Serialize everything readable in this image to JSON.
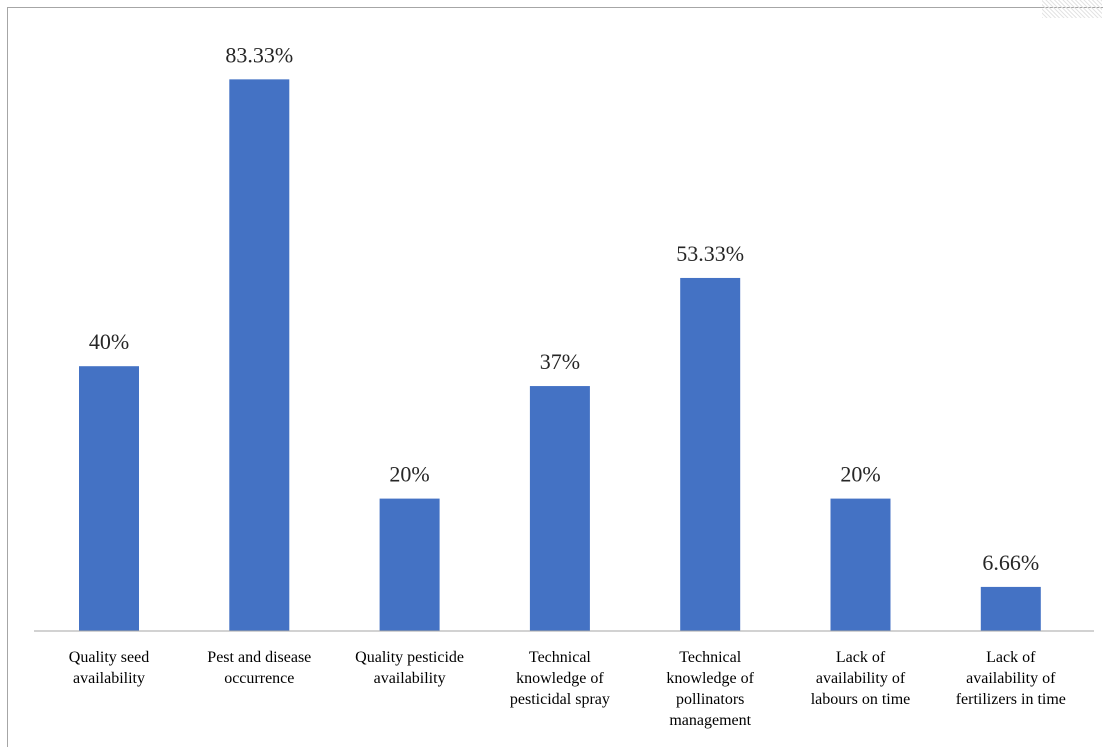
{
  "chart_data": {
    "type": "bar",
    "categories": [
      [
        "Quality seed",
        "availability"
      ],
      [
        "Pest and disease",
        "occurrence"
      ],
      [
        "Quality pesticide",
        "availability"
      ],
      [
        "Technical",
        "knowledge of",
        "pesticidal spray"
      ],
      [
        "Technical",
        "knowledge of",
        "pollinators",
        "management"
      ],
      [
        "Lack of",
        "availability of",
        "labours on time"
      ],
      [
        "Lack of",
        "availability of",
        "fertilizers in time"
      ]
    ],
    "values": [
      40,
      83.33,
      20,
      37,
      53.33,
      20,
      6.66
    ],
    "data_labels": [
      "40%",
      "83.33%",
      "20%",
      "37%",
      "53.33%",
      "20%",
      "6.66%"
    ],
    "ylim": [
      0,
      100
    ],
    "grid": false,
    "colors": {
      "bar": "#4472c4",
      "axis": "#a6a6a6",
      "text": "#262626"
    }
  }
}
